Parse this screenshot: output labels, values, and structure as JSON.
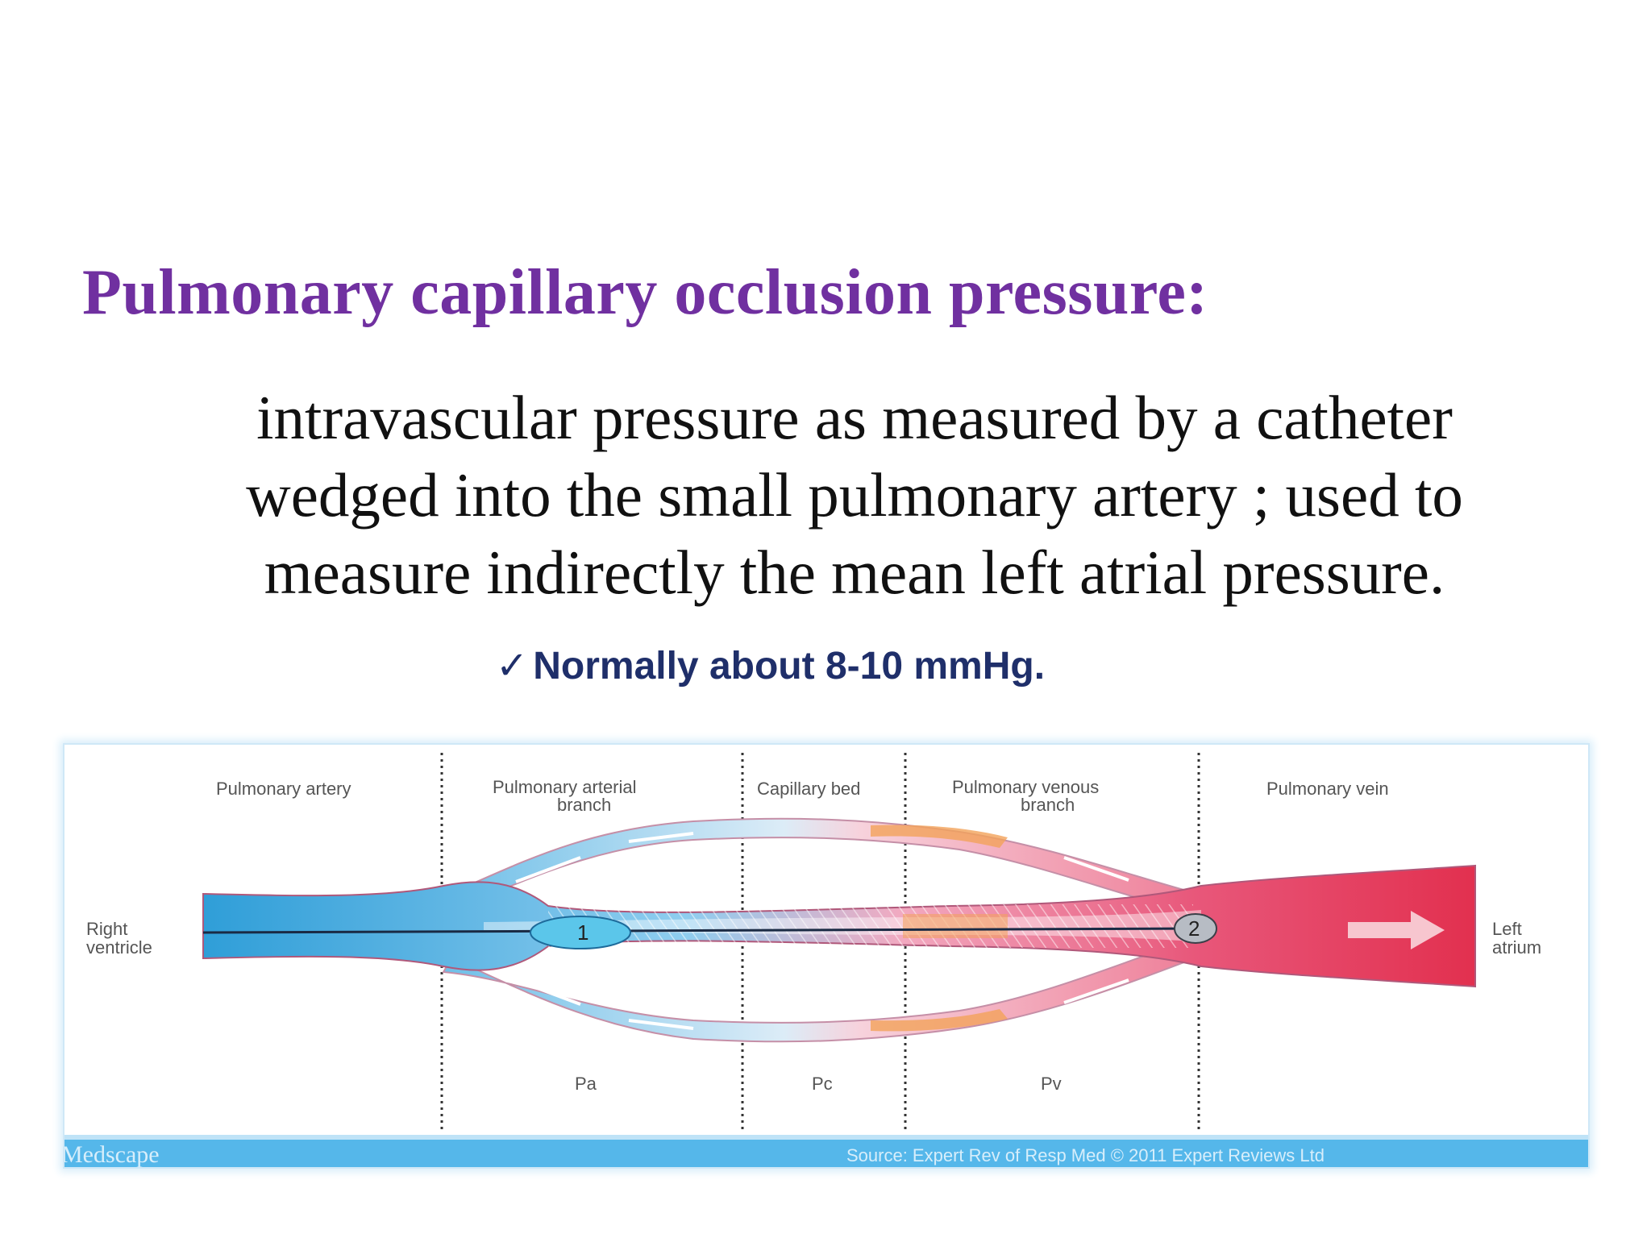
{
  "slide": {
    "title": "Pulmonary capillary occlusion pressure:",
    "definition_lines": [
      "intravascular pressure as measured by a catheter",
      "wedged into the small pulmonary artery ; used to",
      "measure indirectly the mean left atrial pressure."
    ],
    "bullet": {
      "check_icon": "✓",
      "text": "Normally about 8-10 mmHg."
    }
  },
  "diagram": {
    "regions": [
      {
        "label_lines": [
          "Pulmonary artery"
        ]
      },
      {
        "label_lines": [
          "Pulmonary arterial",
          "branch"
        ]
      },
      {
        "label_lines": [
          "Capillary bed"
        ]
      },
      {
        "label_lines": [
          "Pulmonary venous",
          "branch"
        ]
      },
      {
        "label_lines": [
          "Pulmonary vein"
        ]
      }
    ],
    "left_end_label": [
      "Right",
      "ventricle"
    ],
    "right_end_label": [
      "Left",
      "atrium"
    ],
    "balloon_labels": [
      "1",
      "2"
    ],
    "pressure_labels": [
      "Pa",
      "Pc",
      "Pv"
    ],
    "footer_left": "Medscape",
    "footer_right": "Source: Expert Rev of Resp Med © 2011 Expert Reviews Ltd",
    "colors": {
      "arterial": "#3ea6dc",
      "venous": "#e0365a",
      "footer_bar": "#55b7ea",
      "capillary_accent": "#f3a35a"
    }
  }
}
